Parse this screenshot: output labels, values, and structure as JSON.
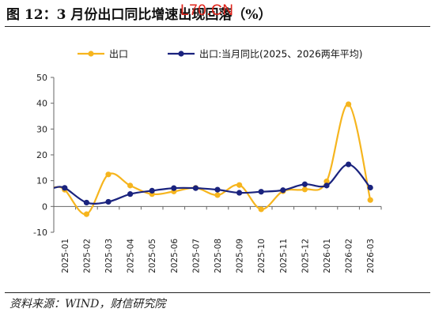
{
  "title": "图 12：3 月份出口同比增速出现回落（%）",
  "watermark": "L70.CN",
  "source": "资料来源：WIND，财信研究院",
  "colors": {
    "export": "#f6b51e",
    "monthly": "#1a237e"
  },
  "chart_data": {
    "type": "line",
    "categories": [
      "2025-01",
      "2025-02",
      "2025-03",
      "2025-04",
      "2025-05",
      "2025-06",
      "2025-07",
      "2025-08",
      "2025-09",
      "2025-10",
      "2025-11",
      "2025-12",
      "2026-01",
      "2026-02",
      "2026-03"
    ],
    "series": [
      {
        "name": "出口",
        "values": [
          6.5,
          -3.0,
          12.4,
          8.1,
          4.8,
          5.8,
          7.2,
          4.4,
          8.3,
          -1.1,
          5.9,
          6.6,
          9.7,
          39.6,
          2.5
        ]
      },
      {
        "name": "出口:当月同比(2025、2026两年平均)",
        "values": [
          7.2,
          1.5,
          1.8,
          4.8,
          6.1,
          7.1,
          7.1,
          6.5,
          5.3,
          5.7,
          6.3,
          8.6,
          8.1,
          16.3,
          7.3
        ]
      }
    ],
    "title": "图 12：3 月份出口同比增速出现回落（%）",
    "xlabel": "",
    "ylabel": "",
    "ylim": [
      -10,
      50
    ],
    "yticks": [
      -10,
      0,
      10,
      20,
      30,
      40,
      50
    ],
    "grid": false,
    "legend": "top"
  }
}
